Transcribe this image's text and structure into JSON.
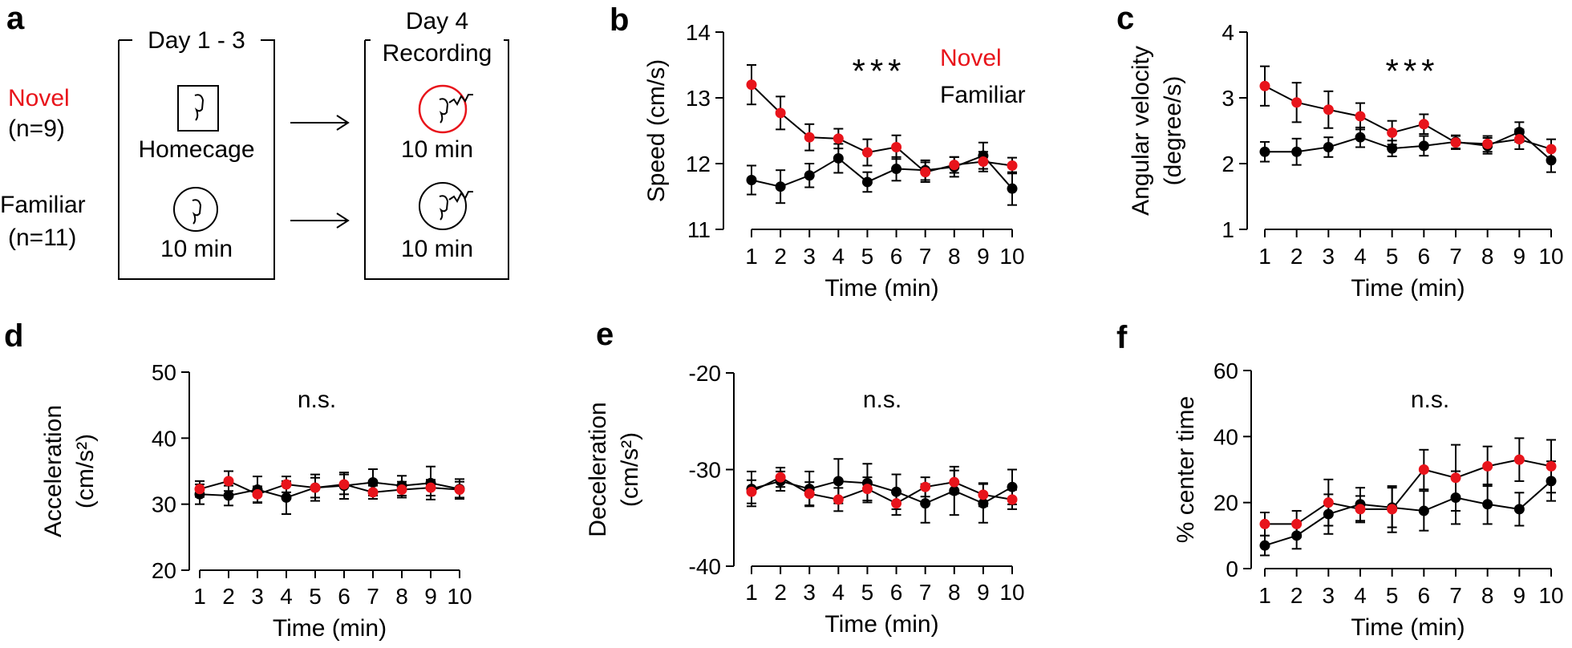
{
  "colors": {
    "novel": "#e8141b",
    "familiar": "#000000"
  },
  "schematic": {
    "panel_label": "a",
    "groups": [
      {
        "name": "Novel",
        "n": "(n=9)",
        "color": "#e8141b"
      },
      {
        "name": "Familiar",
        "n": "(n=11)",
        "color": "#000000"
      }
    ],
    "box1_title": "Day 1 - 3",
    "box1_homecage_label": "Homecage",
    "box1_familiar_label": "10 min",
    "box2_title_line1": "Day 4",
    "box2_title_line2": "Recording",
    "box2_novel_label": "10 min",
    "box2_familiar_label": "10 min",
    "icons": [
      "mouse-in-homecage-icon",
      "mouse-in-arena-icon",
      "novel-arena-recording-icon",
      "familiar-arena-recording-icon",
      "arrow-icon"
    ]
  },
  "chart_data": [
    {
      "panel_label": "b",
      "type": "line",
      "title": "",
      "xlabel": "Time (min)",
      "ylabel": [
        "Speed (cm/s)"
      ],
      "x": [
        1,
        2,
        3,
        4,
        5,
        6,
        7,
        8,
        9,
        10
      ],
      "ylim": [
        11,
        14
      ],
      "yticks": [
        11,
        12,
        13,
        14
      ],
      "annotation": "***",
      "legend": [
        "Novel",
        "Familiar"
      ],
      "series": [
        {
          "name": "Familiar",
          "values": [
            11.75,
            11.65,
            11.82,
            12.08,
            11.72,
            11.92,
            11.9,
            11.95,
            12.12,
            11.62
          ],
          "err": [
            0.22,
            0.25,
            0.18,
            0.22,
            0.15,
            0.18,
            0.15,
            0.15,
            0.2,
            0.25
          ]
        },
        {
          "name": "Novel",
          "values": [
            13.2,
            12.77,
            12.4,
            12.38,
            12.17,
            12.25,
            11.87,
            11.98,
            12.03,
            11.97
          ],
          "err": [
            0.3,
            0.25,
            0.2,
            0.15,
            0.2,
            0.18,
            0.15,
            0.12,
            0.15,
            0.12
          ]
        }
      ]
    },
    {
      "panel_label": "c",
      "type": "line",
      "title": "",
      "xlabel": "Time (min)",
      "ylabel": [
        "Angular velocity",
        "(degree/s)"
      ],
      "x": [
        1,
        2,
        3,
        4,
        5,
        6,
        7,
        8,
        9,
        10
      ],
      "ylim": [
        1,
        4
      ],
      "yticks": [
        1,
        2,
        3,
        4
      ],
      "annotation": "***",
      "series": [
        {
          "name": "Familiar",
          "values": [
            2.18,
            2.18,
            2.25,
            2.4,
            2.23,
            2.27,
            2.33,
            2.27,
            2.48,
            2.05
          ],
          "err": [
            0.15,
            0.2,
            0.15,
            0.15,
            0.12,
            0.15,
            0.1,
            0.12,
            0.15,
            0.18
          ]
        },
        {
          "name": "Novel",
          "values": [
            3.18,
            2.93,
            2.82,
            2.72,
            2.47,
            2.6,
            2.32,
            2.3,
            2.37,
            2.22
          ],
          "err": [
            0.3,
            0.3,
            0.28,
            0.2,
            0.18,
            0.15,
            0.1,
            0.12,
            0.15,
            0.15
          ]
        }
      ]
    },
    {
      "panel_label": "d",
      "type": "line",
      "title": "",
      "xlabel": "Time (min)",
      "ylabel": [
        "Acceleration",
        "(cm/s²)"
      ],
      "x": [
        1,
        2,
        3,
        4,
        5,
        6,
        7,
        8,
        9,
        10
      ],
      "ylim": [
        20,
        50
      ],
      "yticks": [
        20,
        30,
        40,
        50
      ],
      "annotation": "n.s.",
      "series": [
        {
          "name": "Familiar",
          "values": [
            31.5,
            31.3,
            32.2,
            31.0,
            32.5,
            32.8,
            33.3,
            32.8,
            33.2,
            32.3
          ],
          "err": [
            1.5,
            1.5,
            2.0,
            2.5,
            2.0,
            2.0,
            2.0,
            1.5,
            2.5,
            1.5
          ]
        },
        {
          "name": "Novel",
          "values": [
            32.3,
            33.5,
            31.5,
            33.0,
            32.5,
            33.0,
            31.8,
            32.2,
            32.5,
            32.2
          ],
          "err": [
            1.2,
            1.5,
            1.2,
            1.2,
            1.5,
            1.5,
            1.0,
            1.2,
            1.2,
            1.2
          ]
        }
      ]
    },
    {
      "panel_label": "e",
      "type": "line",
      "title": "",
      "xlabel": "Time (min)",
      "ylabel": [
        "Deceleration",
        "(cm/s²)"
      ],
      "x": [
        1,
        2,
        3,
        4,
        5,
        6,
        7,
        8,
        9,
        10
      ],
      "ylim": [
        -40,
        -20
      ],
      "yticks": [
        -40,
        -30,
        -20
      ],
      "annotation": "n.s.",
      "series": [
        {
          "name": "Familiar",
          "values": [
            -32.0,
            -31.2,
            -32.0,
            -31.2,
            -31.4,
            -32.3,
            -33.5,
            -32.2,
            -33.5,
            -31.8
          ],
          "err": [
            1.8,
            1.0,
            1.8,
            2.3,
            2.0,
            1.8,
            2.0,
            2.5,
            2.0,
            1.8
          ]
        },
        {
          "name": "Novel",
          "values": [
            -32.3,
            -30.8,
            -32.5,
            -33.1,
            -32.0,
            -33.5,
            -31.8,
            -31.3,
            -32.6,
            -33.1
          ],
          "err": [
            1.2,
            1.0,
            1.2,
            1.2,
            1.2,
            1.2,
            1.0,
            1.2,
            1.2,
            1.0
          ]
        }
      ]
    },
    {
      "panel_label": "f",
      "type": "line",
      "title": "",
      "xlabel": "Time (min)",
      "ylabel": [
        "% center time"
      ],
      "x": [
        1,
        2,
        3,
        4,
        5,
        6,
        7,
        8,
        9,
        10
      ],
      "ylim": [
        0,
        60
      ],
      "yticks": [
        0,
        20,
        40,
        60
      ],
      "annotation": "n.s.",
      "series": [
        {
          "name": "Familiar",
          "values": [
            7.0,
            10.0,
            16.5,
            19.5,
            18.5,
            17.5,
            21.5,
            19.5,
            18.0,
            26.5
          ],
          "err": [
            3.0,
            4.0,
            6.0,
            5.0,
            6.0,
            6.0,
            8.0,
            6.0,
            5.0,
            6.0
          ]
        },
        {
          "name": "Novel",
          "values": [
            13.5,
            13.5,
            20.0,
            18.0,
            18.0,
            30.0,
            27.5,
            31.0,
            33.0,
            31.0
          ],
          "err": [
            3.5,
            4.0,
            7.0,
            4.0,
            7.0,
            6.0,
            10.0,
            6.0,
            6.5,
            8.0
          ]
        }
      ]
    }
  ]
}
